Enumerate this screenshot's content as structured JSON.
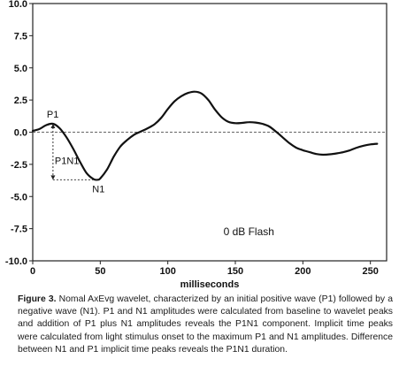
{
  "chart_data": {
    "type": "line",
    "title": "",
    "xlabel": "milliseconds",
    "ylabel": "",
    "xlim": [
      0,
      262
    ],
    "ylim": [
      -10.0,
      10.0
    ],
    "x_ticks": [
      0,
      50,
      100,
      150,
      200,
      250
    ],
    "y_ticks": [
      10.0,
      7.5,
      5.0,
      2.5,
      0.0,
      -2.5,
      -5.0,
      -7.5,
      -10.0
    ],
    "x_tick_labels": [
      "0",
      "50",
      "100",
      "150",
      "200",
      "250"
    ],
    "y_tick_labels": [
      "10.0",
      "7.5",
      "5.0",
      "2.5",
      "0.0",
      "-2.5",
      "-5.0",
      "-7.5",
      "-10.0"
    ],
    "baseline": 0.0,
    "grid": false,
    "series": [
      {
        "x": [
          0,
          5,
          10,
          15,
          20,
          25,
          30,
          35,
          40,
          45,
          48,
          50,
          55,
          60,
          65,
          70,
          75,
          80,
          85,
          90,
          95,
          100,
          105,
          110,
          115,
          120,
          125,
          130,
          135,
          140,
          145,
          150,
          155,
          160,
          165,
          170,
          175,
          180,
          185,
          190,
          195,
          200,
          205,
          210,
          215,
          220,
          225,
          230,
          235,
          240,
          245,
          250,
          255
        ],
        "y": [
          0.1,
          0.25,
          0.55,
          0.65,
          0.3,
          -0.4,
          -1.3,
          -2.3,
          -3.2,
          -3.65,
          -3.7,
          -3.6,
          -2.9,
          -1.9,
          -1.1,
          -0.6,
          -0.2,
          0.05,
          0.3,
          0.6,
          1.1,
          1.8,
          2.4,
          2.8,
          3.05,
          3.15,
          3.0,
          2.5,
          1.75,
          1.15,
          0.8,
          0.7,
          0.72,
          0.78,
          0.75,
          0.65,
          0.45,
          0.05,
          -0.4,
          -0.85,
          -1.2,
          -1.4,
          -1.55,
          -1.7,
          -1.75,
          -1.72,
          -1.65,
          -1.55,
          -1.4,
          -1.2,
          -1.05,
          -0.95,
          -0.9
        ]
      }
    ],
    "annotations": {
      "p1": {
        "label": "P1",
        "x": 15,
        "y": 0.65
      },
      "n1": {
        "label": "N1",
        "x": 48,
        "y": -3.7
      },
      "p1n1": {
        "label": "P1N1"
      },
      "condition": {
        "label": "0 dB Flash"
      }
    }
  },
  "caption": {
    "label": "Figure 3.",
    "text": "Nomal AxEvg wavelet, characterized by an initial positive wave (P1) followed by a negative wave (N1). P1 and N1 amplitudes were calculated from baseline to wavelet peaks and addition of P1 plus N1 amplitudes reveals the P1N1 component. Implicit time peaks were calculated from light stimulus onset to the maximum P1 and N1 amplitudes. Difference between N1 and P1 implicit time peaks reveals the P1N1 duration."
  }
}
